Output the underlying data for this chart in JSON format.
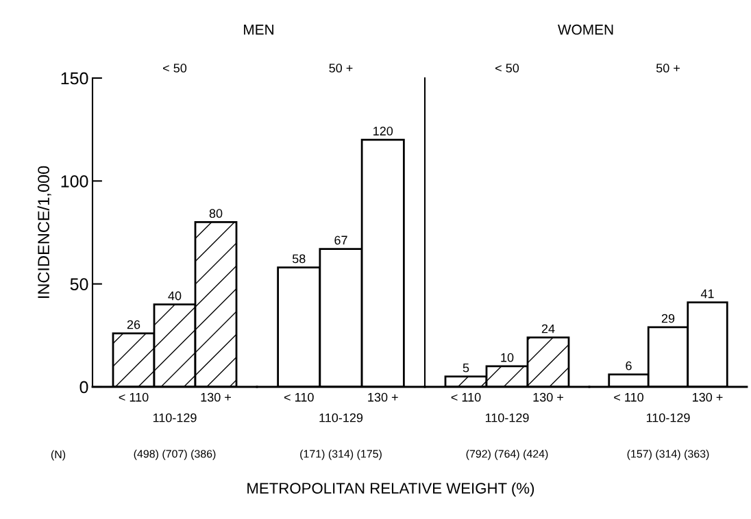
{
  "chart_data": [
    {
      "type": "bar",
      "title": "< 50",
      "ylabel": "INCIDENCE/1,000",
      "xlabel": "METROPOLITAN RELATIVE WEIGHT (%)",
      "categories": [
        "< 110",
        "110-129",
        "130 +"
      ],
      "values": [
        26,
        40,
        80
      ],
      "color": "#000000",
      "data_labels": true,
      "ylim": [
        0,
        150
      ],
      "yticks": [
        0,
        50,
        100,
        150
      ],
      "annotations": [
        "MEN",
        "(N)",
        "(498) (707) (386)"
      ]
    },
    {
      "type": "bar",
      "title": "50 +",
      "categories": [
        "< 110",
        "110-129",
        "130 +"
      ],
      "values": [
        58,
        67,
        120
      ],
      "color": "#ffffff",
      "data_labels": true,
      "ylim": [
        0,
        150
      ],
      "yticks": [
        0,
        50,
        100,
        150
      ],
      "tick_labels": "x",
      "annotations": [
        "(171) (314) (175)"
      ]
    },
    {
      "type": "bar",
      "title": "< 50",
      "categories": [
        "< 110",
        "110-129",
        "130 +"
      ],
      "values": [
        5,
        10,
        24
      ],
      "color": "#000000",
      "data_labels": true,
      "ylim": [
        0,
        150
      ],
      "yticks": [
        0,
        50,
        100,
        150
      ],
      "tick_labels": "x",
      "annotations": [
        "WOMEN",
        "(792) (764) (424)"
      ]
    },
    {
      "type": "bar",
      "title": "50 +",
      "categories": [
        "< 110",
        "110-129",
        "130 +"
      ],
      "values": [
        6,
        29,
        41
      ],
      "color": "#ffffff",
      "data_labels": true,
      "ylim": [
        0,
        150
      ],
      "yticks": [
        0,
        50,
        100,
        150
      ],
      "tick_labels": "x",
      "annotations": [
        "(157) (314) (363)"
      ]
    }
  ]
}
